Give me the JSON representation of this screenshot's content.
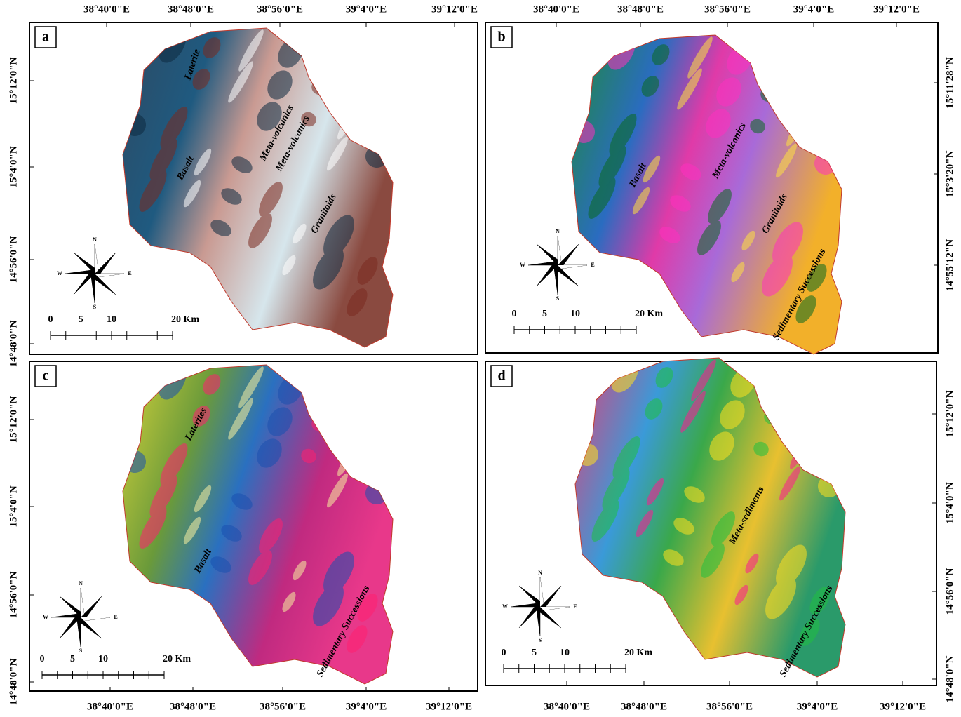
{
  "panels": [
    {
      "label": "a",
      "x_labels": [
        "38°40'0\"E",
        "38°48'0\"E",
        "38°56'0\"E",
        "39°4'0\"E",
        "39°12'0\"E"
      ],
      "y_labels": [
        "15°12'0\"N",
        "15°4'0\"N",
        "14°56'0\"N",
        "14°48'0\"N"
      ],
      "units": [
        "Laterite",
        "Meta-volcanics",
        "Meta-volcanics",
        "Basalt",
        "Granitoids"
      ],
      "compass": [
        "N",
        "W",
        "E",
        "S"
      ],
      "scale": [
        "0",
        "5",
        "10",
        "20 Km"
      ]
    },
    {
      "label": "b",
      "x_labels": [
        "38°40'0\"E",
        "38°48'0\"E",
        "38°56'0\"E",
        "39°4'0\"E",
        "39°12'0\"E"
      ],
      "y_labels": [
        "15°11'28\"N",
        "15°3'20\"N",
        "14°55'12\"N"
      ],
      "units": [
        "Basalt",
        "Meta-volcanics",
        "Granitoids",
        "Sedimentary Successions"
      ],
      "compass": [
        "N",
        "W",
        "E",
        "S"
      ],
      "scale": [
        "0",
        "5",
        "10",
        "20 Km"
      ]
    },
    {
      "label": "c",
      "x_labels": [
        "38°40'0\"E",
        "38°48'0\"E",
        "38°56'0\"E",
        "39°4'0\"E",
        "39°12'0\"E"
      ],
      "y_labels": [
        "15°12'0\"N",
        "15°4'0\"N",
        "14°56'0\"N",
        "14°48'0\"N"
      ],
      "units": [
        "Laterites",
        "Basalt",
        "Sedimentary Successions"
      ],
      "compass": [
        "N",
        "W",
        "E",
        "S"
      ],
      "scale": [
        "0",
        "5",
        "10",
        "20 Km"
      ]
    },
    {
      "label": "d",
      "x_labels": [
        "38°40'0\"E",
        "38°48'0\"E",
        "38°56'0\"E",
        "39°4'0\"E",
        "39°12'0\"E"
      ],
      "y_labels": [
        "15°12'0\"N",
        "15°4'0\"N",
        "14°56'0\"N",
        "14°48'0\"N"
      ],
      "units": [
        "Meta-sediments",
        "Sedimentary Successions"
      ],
      "compass": [
        "N",
        "W",
        "E",
        "S"
      ],
      "scale": [
        "0",
        "5",
        "10",
        "20 Km"
      ]
    }
  ]
}
